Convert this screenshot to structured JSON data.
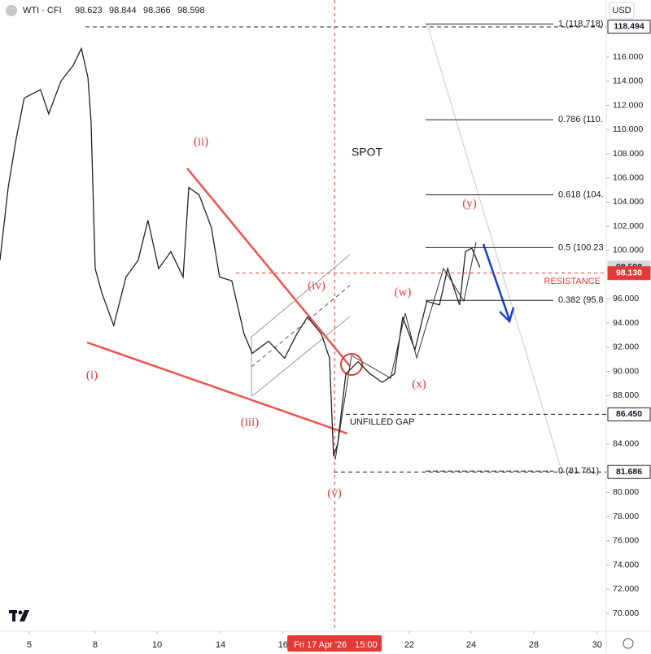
{
  "chart_data": {
    "type": "line",
    "header": {
      "symbol": "WTI · CFI",
      "open": 98.623,
      "high": 98.844,
      "low": 98.366,
      "close": 98.598
    },
    "currency": "USD",
    "series": [
      {
        "name": "WTI",
        "color": "#222222",
        "x": [
          -0.93,
          -0.67,
          -0.41,
          -0.16,
          0.36,
          0.62,
          1.01,
          1.4,
          1.66,
          1.87,
          1.97,
          2.1,
          2.31,
          2.69,
          3.08,
          3.47,
          3.78,
          4.12,
          4.51,
          4.9,
          5.08,
          5.41,
          5.8,
          6.06,
          6.45,
          6.84,
          7.1,
          7.62,
          8.13,
          8.52,
          8.86,
          9.3,
          9.56,
          9.69,
          9.82,
          10.08,
          10.47,
          10.85,
          11.24,
          11.63,
          11.89,
          12.28,
          12.66,
          13.06,
          13.32,
          13.7,
          13.89,
          14.09,
          14.35
        ],
        "values": [
          99.2,
          105.2,
          109.3,
          112.6,
          113.3,
          111.3,
          114.0,
          115.3,
          116.7,
          114.3,
          110.6,
          98.5,
          96.5,
          93.8,
          97.8,
          99.2,
          102.5,
          98.5,
          99.9,
          97.8,
          105.2,
          104.6,
          101.9,
          97.8,
          97.5,
          93.1,
          91.5,
          92.5,
          91.1,
          93.1,
          94.5,
          93.1,
          91.1,
          83.0,
          84.0,
          89.8,
          90.8,
          89.8,
          89.1,
          89.8,
          94.5,
          91.8,
          95.8,
          95.5,
          98.5,
          95.5,
          99.9,
          100.2,
          98.598
        ]
      }
    ],
    "xlim": [
      -0.93,
      18.37
    ],
    "xticks": [
      {
        "value": 0,
        "label": "5"
      },
      {
        "value": 2.1,
        "label": "8"
      },
      {
        "value": 4.07,
        "label": "10"
      },
      {
        "value": 6.09,
        "label": "14"
      },
      {
        "value": 8.08,
        "label": "16"
      },
      {
        "value": 12.1,
        "label": "22"
      },
      {
        "value": 14.07,
        "label": "24"
      },
      {
        "value": 16.06,
        "label": "28"
      },
      {
        "value": 18.08,
        "label": "30"
      }
    ],
    "ylim": [
      68.52,
      120.71
    ],
    "yticks": [
      {
        "value": 70,
        "label": "70.000"
      },
      {
        "value": 72,
        "label": "72.000"
      },
      {
        "value": 74,
        "label": "74.000"
      },
      {
        "value": 76,
        "label": "76.000"
      },
      {
        "value": 78,
        "label": "78.000"
      },
      {
        "value": 80,
        "label": "80.000"
      },
      {
        "value": 84,
        "label": "84.000"
      },
      {
        "value": 88,
        "label": "88.000"
      },
      {
        "value": 90,
        "label": "90.000"
      },
      {
        "value": 92,
        "label": "92.000"
      },
      {
        "value": 94,
        "label": "94.000"
      },
      {
        "value": 96,
        "label": "96.000"
      },
      {
        "value": 100,
        "label": "100.000"
      },
      {
        "value": 102,
        "label": "102.000"
      },
      {
        "value": 104,
        "label": "104.000"
      },
      {
        "value": 106,
        "label": "106.000"
      },
      {
        "value": 108,
        "label": "108.000"
      },
      {
        "value": 110,
        "label": "110.000"
      },
      {
        "value": 112,
        "label": "112.000"
      },
      {
        "value": 114,
        "label": "114.000"
      },
      {
        "value": 116,
        "label": "116.000"
      }
    ],
    "price_tags": [
      {
        "value": 118.494,
        "label": "118.494",
        "color": "#ffffff"
      },
      {
        "value": 98.598,
        "label": "98.598",
        "color": "#d9d9d9"
      },
      {
        "value": 98.13,
        "label": "98.130",
        "color": "#e53935"
      },
      {
        "value": 86.45,
        "label": "86.450",
        "color": "#ffffff"
      },
      {
        "value": 81.686,
        "label": "81.686",
        "color": "#ffffff"
      }
    ],
    "fib_levels": [
      {
        "value": 118.718,
        "label": "1 (118.718)"
      },
      {
        "value": 110.81,
        "label": "0.786 (110."
      },
      {
        "value": 104.6,
        "label": "0.618 (104."
      },
      {
        "value": 100.24,
        "label": "0.5 (100.23"
      },
      {
        "value": 95.88,
        "label": "0.382 (95.8"
      },
      {
        "value": 81.761,
        "label": "0 (81.761)"
      }
    ],
    "crosshair": {
      "x": 9.72,
      "label": "Fri 17 Apr '26",
      "time": "15:00"
    },
    "wave_labels": [
      "(i)",
      "(ii)",
      "(iii)",
      "(iv)",
      "(v)",
      "(w)",
      "(x)",
      "(y)"
    ],
    "annotations": {
      "spot": "SPOT",
      "gap": "UNFILLED GAP",
      "resistance": "RESISTANCE"
    }
  }
}
